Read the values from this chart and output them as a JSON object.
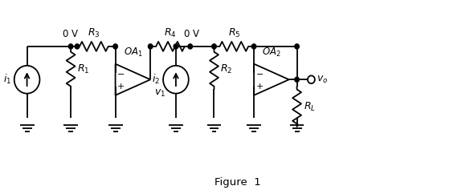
{
  "fig_width": 5.9,
  "fig_height": 2.42,
  "dpi": 100,
  "background_color": "#ffffff",
  "line_color": "#000000",
  "line_width": 1.3,
  "figure_label": "Figure  1"
}
